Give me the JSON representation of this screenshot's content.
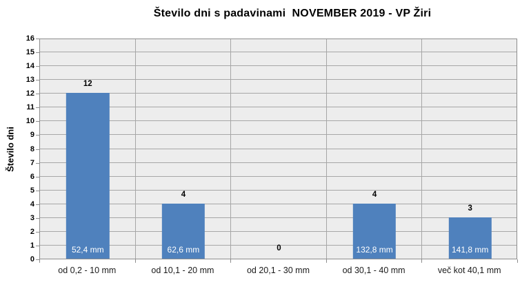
{
  "chart_data": {
    "type": "bar",
    "title": "Število dni s padavinami  NOVEMBER 2019 - VP Žiri",
    "ylabel": "Število dni",
    "xlabel": "",
    "ylim": [
      0,
      16
    ],
    "ytick_step": 1,
    "grid": true,
    "legend": false,
    "categories": [
      "od 0,2 - 10 mm",
      "od 10,1 - 20 mm",
      "od 20,1 - 30 mm",
      "od 30,1 - 40 mm",
      "več kot 40,1 mm"
    ],
    "values": [
      12,
      4,
      0,
      4,
      3
    ],
    "value_labels": [
      "12",
      "4",
      "0",
      "4",
      "3"
    ],
    "bar_mm_labels": [
      "52,4 mm",
      "62,6 mm",
      "",
      "132,8 mm",
      "141,8 mm"
    ]
  },
  "colors": {
    "bar": "#4F81BD",
    "plot_background": "#EDEDED",
    "gridline": "#A6A6A6",
    "axis": "#8C8C8C",
    "text": "#000000",
    "bar_label_inside": "#FFFFFF"
  }
}
